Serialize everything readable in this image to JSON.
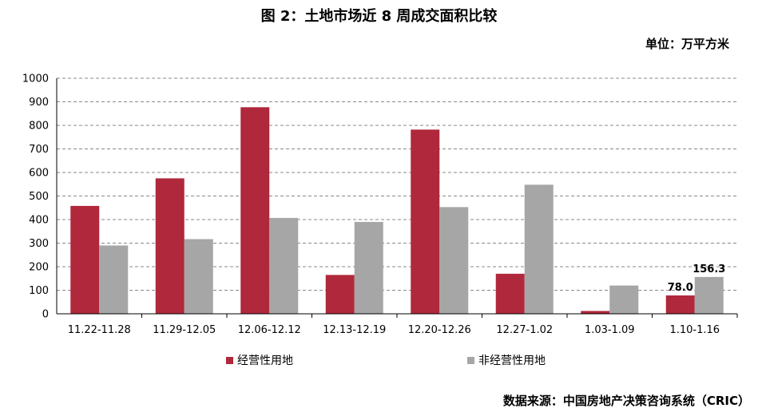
{
  "header": {
    "title": "图 2：土地市场近 8 周成交面积比较",
    "unit": "单位：万平方米"
  },
  "footer": {
    "source": "数据来源：中国房地产决策咨询系统（CRIC）"
  },
  "chart_data": {
    "type": "bar",
    "title": "图 2：土地市场近 8 周成交面积比较",
    "xlabel": "",
    "ylabel": "",
    "ylim": [
      0,
      1000
    ],
    "yticks": [
      0,
      100,
      200,
      300,
      400,
      500,
      600,
      700,
      800,
      900,
      1000
    ],
    "grid": true,
    "legend": "bottom",
    "categories": [
      "11.22-11.28",
      "11.29-12.05",
      "12.06-12.12",
      "12.13-12.19",
      "12.20-12.26",
      "12.27-1.02",
      "1.03-1.09",
      "1.10-1.16"
    ],
    "series": [
      {
        "name": "经营性用地",
        "color": "#b0283b",
        "values": [
          458,
          575,
          877,
          165,
          782,
          170,
          12,
          78.0
        ]
      },
      {
        "name": "非经营性用地",
        "color": "#a6a6a6",
        "values": [
          290,
          317,
          407,
          390,
          453,
          548,
          120,
          156.3
        ]
      }
    ],
    "data_labels": [
      {
        "series": 0,
        "index": 7,
        "text": "78.0"
      },
      {
        "series": 1,
        "index": 7,
        "text": "156.3"
      }
    ]
  }
}
